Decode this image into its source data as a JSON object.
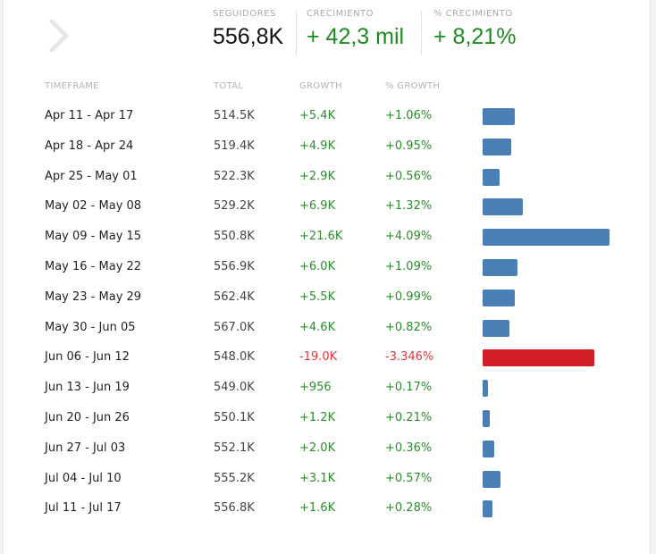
{
  "summary": {
    "followers": {
      "label": "SEGUIDORES",
      "value": "556,8K",
      "color": "#111111"
    },
    "growth": {
      "label": "CRECIMIENTO",
      "value": "+ 42,3 mil",
      "color": "#1e8a1e"
    },
    "pct_growth": {
      "label": "% CRECIMIENTO",
      "value": "+ 8,21%",
      "color": "#1e8a1e"
    }
  },
  "table": {
    "headers": {
      "timeframe": "TIMEFRAME",
      "total": "TOTAL",
      "growth": "GROWTH",
      "pct": "% GROWTH"
    },
    "colors": {
      "positive": "#2e8b2e",
      "negative": "#e0393b",
      "bar_positive": "#4a7fb5",
      "bar_negative": "#d21f26"
    },
    "max_abs_growth": 21600,
    "rows": [
      {
        "timeframe": "Apr 11 - Apr 17",
        "total": "514.5K",
        "growth": "+5.4K",
        "pct": "+1.06%",
        "growth_value": 5400
      },
      {
        "timeframe": "Apr 18 - Apr 24",
        "total": "519.4K",
        "growth": "+4.9K",
        "pct": "+0.95%",
        "growth_value": 4900
      },
      {
        "timeframe": "Apr 25 - May 01",
        "total": "522.3K",
        "growth": "+2.9K",
        "pct": "+0.56%",
        "growth_value": 2900
      },
      {
        "timeframe": "May 02 - May 08",
        "total": "529.2K",
        "growth": "+6.9K",
        "pct": "+1.32%",
        "growth_value": 6900
      },
      {
        "timeframe": "May 09 - May 15",
        "total": "550.8K",
        "growth": "+21.6K",
        "pct": "+4.09%",
        "growth_value": 21600
      },
      {
        "timeframe": "May 16 - May 22",
        "total": "556.9K",
        "growth": "+6.0K",
        "pct": "+1.09%",
        "growth_value": 6000
      },
      {
        "timeframe": "May 23 - May 29",
        "total": "562.4K",
        "growth": "+5.5K",
        "pct": "+0.99%",
        "growth_value": 5500
      },
      {
        "timeframe": "May 30 - Jun 05",
        "total": "567.0K",
        "growth": "+4.6K",
        "pct": "+0.82%",
        "growth_value": 4600
      },
      {
        "timeframe": "Jun 06 - Jun 12",
        "total": "548.0K",
        "growth": "-19.0K",
        "pct": "-3.346%",
        "growth_value": -19000
      },
      {
        "timeframe": "Jun 13 - Jun 19",
        "total": "549.0K",
        "growth": "+956",
        "pct": "+0.17%",
        "growth_value": 956
      },
      {
        "timeframe": "Jun 20 - Jun 26",
        "total": "550.1K",
        "growth": "+1.2K",
        "pct": "+0.21%",
        "growth_value": 1200
      },
      {
        "timeframe": "Jun 27 - Jul 03",
        "total": "552.1K",
        "growth": "+2.0K",
        "pct": "+0.36%",
        "growth_value": 2000
      },
      {
        "timeframe": "Jul 04 - Jul 10",
        "total": "555.2K",
        "growth": "+3.1K",
        "pct": "+0.57%",
        "growth_value": 3100
      },
      {
        "timeframe": "Jul 11 - Jul 17",
        "total": "556.8K",
        "growth": "+1.6K",
        "pct": "+0.28%",
        "growth_value": 1600
      }
    ]
  }
}
